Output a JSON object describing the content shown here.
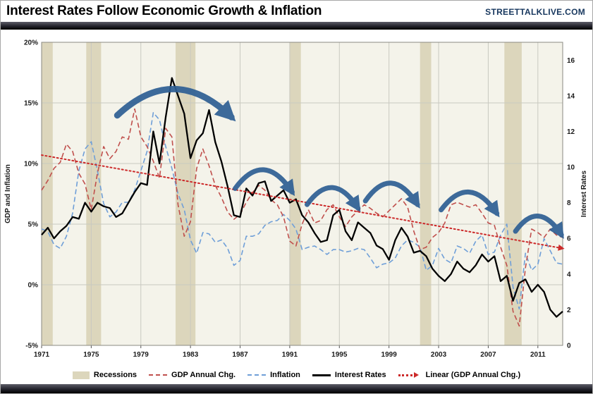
{
  "header": {
    "title": "Interest Rates Follow Economic Growth & Inflation",
    "brand": "STREETTALKLIVE.COM"
  },
  "legend": {
    "recessions": "Recessions",
    "gdp": "GDP Annual Chg.",
    "inflation": "Inflation",
    "rates": "Interest Rates",
    "linear": "Linear (GDP Annual Chg.)"
  },
  "colors": {
    "gdp": "#C0504D",
    "inflation": "#6F9FD8",
    "rates": "#000000",
    "trend": "#CC2A2A",
    "arrow": "#2E5F94",
    "recession": "#DCD6BC",
    "plot_bg": "#F4F3EA",
    "grid": "#C9C9C0",
    "brand": "#17375E"
  },
  "chart_data": {
    "type": "line",
    "title": "Interest Rates Follow Economic Growth & Inflation",
    "grid": true,
    "legend_position": "bottom",
    "x_start": 1971,
    "x_step": 0.5,
    "x_end": 2013,
    "n_points": 85,
    "left_axis": {
      "label": "GDP and Inflation",
      "min": -5,
      "max": 20,
      "ticks": [
        {
          "v": 20,
          "label": "20%"
        },
        {
          "v": 15,
          "label": "15%"
        },
        {
          "v": 10,
          "label": "10%"
        },
        {
          "v": 5,
          "label": "5%"
        },
        {
          "v": 0,
          "label": "0%"
        },
        {
          "v": -5,
          "label": "-5%"
        }
      ]
    },
    "right_axis": {
      "label": "Interest Rates",
      "min": 0,
      "max": 17,
      "ticks": [
        {
          "v": 16,
          "label": "16"
        },
        {
          "v": 14,
          "label": "14"
        },
        {
          "v": 12,
          "label": "12"
        },
        {
          "v": 10,
          "label": "10"
        },
        {
          "v": 8,
          "label": "8"
        },
        {
          "v": 6,
          "label": "6"
        },
        {
          "v": 4,
          "label": "4"
        },
        {
          "v": 2,
          "label": "2"
        },
        {
          "v": 0,
          "label": "0"
        }
      ]
    },
    "x_ticks": [
      {
        "v": 1971,
        "label": "1971"
      },
      {
        "v": 1975,
        "label": "1975"
      },
      {
        "v": 1979,
        "label": "1979"
      },
      {
        "v": 1983,
        "label": "1983"
      },
      {
        "v": 1987,
        "label": "1987"
      },
      {
        "v": 1991,
        "label": "1991"
      },
      {
        "v": 1995,
        "label": "1995"
      },
      {
        "v": 1999,
        "label": "1999"
      },
      {
        "v": 2003,
        "label": "2003"
      },
      {
        "v": 2007,
        "label": "2007"
      },
      {
        "v": 2011,
        "label": "2011"
      }
    ],
    "recessions": [
      [
        1971.0,
        1971.9
      ],
      [
        1974.6,
        1975.8
      ],
      [
        1981.8,
        1983.4
      ],
      [
        1991.0,
        1991.9
      ],
      [
        2001.5,
        2002.4
      ],
      [
        2008.3,
        2009.7
      ]
    ],
    "series": [
      {
        "id": "inflation",
        "name": "Inflation",
        "axis": "left",
        "color_key": "inflation",
        "dash": "7 4",
        "width": 1.6,
        "values": [
          4.6,
          4.4,
          3.3,
          3.0,
          4.0,
          5.9,
          9.4,
          11.2,
          11.8,
          9.4,
          6.7,
          5.6,
          6.0,
          6.8,
          6.8,
          7.8,
          9.4,
          11.0,
          14.2,
          13.6,
          11.4,
          9.6,
          7.5,
          6.2,
          3.7,
          2.6,
          4.3,
          4.2,
          3.5,
          3.7,
          3.0,
          1.6,
          2.0,
          4.0,
          4.0,
          4.2,
          4.9,
          5.2,
          5.3,
          5.8,
          5.3,
          4.6,
          2.9,
          3.1,
          3.2,
          2.9,
          2.5,
          2.9,
          2.9,
          2.7,
          2.8,
          3.0,
          2.9,
          2.2,
          1.4,
          1.7,
          1.8,
          2.2,
          3.2,
          3.7,
          3.5,
          3.1,
          1.2,
          1.6,
          3.0,
          2.1,
          1.8,
          3.2,
          3.0,
          2.6,
          3.6,
          4.1,
          2.5,
          2.7,
          4.1,
          5.0,
          -0.2,
          -2.0,
          2.6,
          1.2,
          1.7,
          3.8,
          2.8,
          1.8,
          1.7
        ]
      },
      {
        "id": "gdp",
        "name": "GDP Annual Chg.",
        "axis": "left",
        "color_key": "gdp",
        "dash": "7 4",
        "width": 1.6,
        "values": [
          7.8,
          8.6,
          9.6,
          10.1,
          11.6,
          11.0,
          9.2,
          8.3,
          6.2,
          9.2,
          11.4,
          10.4,
          11.0,
          12.2,
          12.0,
          14.5,
          12.2,
          11.4,
          10.2,
          8.8,
          12.9,
          12.2,
          6.6,
          4.0,
          5.2,
          9.6,
          11.2,
          9.8,
          8.2,
          7.2,
          6.0,
          5.4,
          5.8,
          6.8,
          7.6,
          8.2,
          7.8,
          7.0,
          6.6,
          5.6,
          3.6,
          3.2,
          5.0,
          6.2,
          5.1,
          5.3,
          6.2,
          6.6,
          5.6,
          4.8,
          5.6,
          6.1,
          6.6,
          6.3,
          5.9,
          5.6,
          6.1,
          6.6,
          7.1,
          6.4,
          4.4,
          2.9,
          3.1,
          3.9,
          4.3,
          5.1,
          6.6,
          6.8,
          6.6,
          6.4,
          6.6,
          5.9,
          5.1,
          4.9,
          3.1,
          1.6,
          -2.2,
          -3.4,
          1.4,
          4.6,
          4.3,
          3.9,
          4.6,
          4.1,
          3.9
        ]
      },
      {
        "id": "rates",
        "name": "Interest Rates",
        "axis": "right",
        "color_key": "rates",
        "dash": null,
        "width": 2.3,
        "values": [
          6.2,
          6.6,
          6.0,
          6.4,
          6.7,
          7.2,
          7.1,
          8.0,
          7.5,
          8.0,
          7.8,
          7.7,
          7.2,
          7.4,
          8.0,
          8.6,
          9.1,
          9.0,
          12.0,
          10.2,
          12.8,
          15.0,
          14.0,
          13.0,
          10.5,
          11.5,
          11.9,
          13.2,
          11.4,
          10.3,
          8.9,
          7.3,
          7.2,
          8.8,
          8.4,
          9.1,
          9.2,
          8.1,
          8.4,
          8.7,
          8.0,
          8.2,
          7.3,
          6.9,
          6.3,
          5.8,
          5.9,
          7.3,
          7.6,
          6.4,
          5.9,
          6.9,
          6.6,
          6.3,
          5.6,
          5.4,
          4.8,
          5.9,
          6.6,
          6.1,
          5.2,
          5.3,
          5.0,
          4.3,
          3.9,
          3.6,
          4.0,
          4.7,
          4.3,
          4.1,
          4.5,
          5.1,
          4.7,
          5.0,
          3.6,
          3.9,
          2.5,
          3.5,
          3.7,
          3.0,
          3.4,
          3.0,
          2.0,
          1.6,
          1.9
        ]
      }
    ],
    "trend": {
      "name": "Linear (GDP Annual Chg.)",
      "axis": "left",
      "start": [
        1971,
        10.7
      ],
      "end": [
        2013,
        3.0
      ]
    },
    "arrows": [
      {
        "from": [
          1977.1,
          12.9
        ],
        "to": [
          1986.3,
          12.8
        ],
        "lift": 3.0,
        "width": 9
      },
      {
        "from": [
          1986.6,
          8.8
        ],
        "to": [
          1991.2,
          8.6
        ],
        "lift": 2.2,
        "width": 7
      },
      {
        "from": [
          1992.4,
          7.9
        ],
        "to": [
          1996.5,
          7.7
        ],
        "lift": 2.0,
        "width": 7
      },
      {
        "from": [
          1997.1,
          8.1
        ],
        "to": [
          2001.3,
          7.9
        ],
        "lift": 2.1,
        "width": 7
      },
      {
        "from": [
          2003.2,
          7.6
        ],
        "to": [
          2007.7,
          7.4
        ],
        "lift": 2.1,
        "width": 7
      },
      {
        "from": [
          2009.2,
          6.4
        ],
        "to": [
          2012.9,
          6.2
        ],
        "lift": 1.8,
        "width": 7
      }
    ]
  }
}
